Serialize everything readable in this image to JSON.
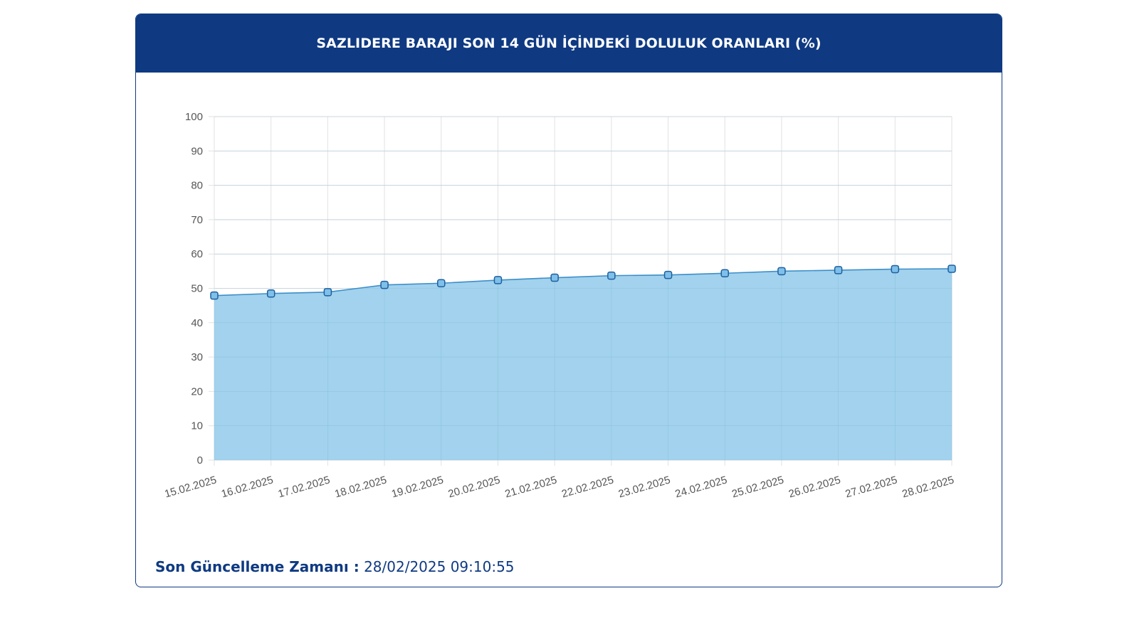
{
  "card": {
    "title": "SAZLIDERE BARAJI SON 14 GÜN İÇİNDEKİ DOLULUK ORANLARI (%)"
  },
  "footer": {
    "label": "Son Güncelleme Zamanı :",
    "value": "28/02/2025 09:10:55"
  },
  "colors": {
    "header_bg": "#0f3a82",
    "area_fill": "#9dd0ec",
    "line": "#3d8ec9",
    "grid": "#e2e2e2",
    "tick_text": "#555555"
  },
  "chart_data": {
    "type": "area",
    "title": "SAZLIDERE BARAJI SON 14 GÜN İÇİNDEKİ DOLULUK ORANLARI (%)",
    "xlabel": "",
    "ylabel": "",
    "ylim": [
      0,
      100
    ],
    "yticks": [
      0,
      10,
      20,
      30,
      40,
      50,
      60,
      70,
      80,
      90,
      100
    ],
    "grid": true,
    "legend": "none",
    "categories": [
      "15.02.2025",
      "16.02.2025",
      "17.02.2025",
      "18.02.2025",
      "19.02.2025",
      "20.02.2025",
      "21.02.2025",
      "22.02.2025",
      "23.02.2025",
      "24.02.2025",
      "25.02.2025",
      "26.02.2025",
      "27.02.2025",
      "28.02.2025"
    ],
    "series": [
      {
        "values": [
          47.9,
          48.5,
          48.9,
          51.0,
          51.5,
          52.4,
          53.1,
          53.7,
          53.9,
          54.4,
          55.0,
          55.3,
          55.6,
          55.7
        ]
      }
    ]
  }
}
